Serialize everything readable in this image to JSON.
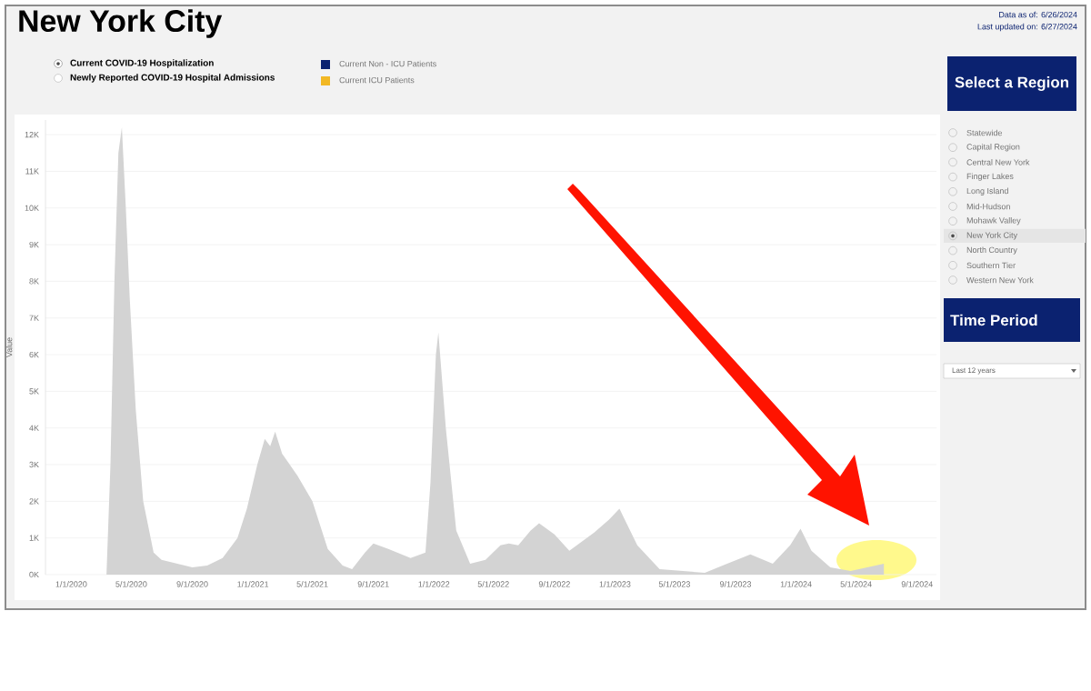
{
  "chart_data": {
    "type": "area",
    "title": "New York City",
    "ylabel": "Value",
    "x": [
      "2020-03-12",
      "2020-03-20",
      "2020-03-28",
      "2020-04-05",
      "2020-04-12",
      "2020-04-20",
      "2020-04-28",
      "2020-05-10",
      "2020-05-25",
      "2020-06-15",
      "2020-07-01",
      "2020-08-01",
      "2020-09-01",
      "2020-10-01",
      "2020-11-01",
      "2020-12-01",
      "2020-12-20",
      "2021-01-10",
      "2021-01-25",
      "2021-02-05",
      "2021-02-15",
      "2021-03-01",
      "2021-04-01",
      "2021-05-01",
      "2021-06-01",
      "2021-07-01",
      "2021-07-20",
      "2021-08-15",
      "2021-09-01",
      "2021-10-01",
      "2021-11-15",
      "2021-12-15",
      "2021-12-25",
      "2022-01-05",
      "2022-01-10",
      "2022-01-25",
      "2022-02-15",
      "2022-03-15",
      "2022-04-15",
      "2022-05-15",
      "2022-06-01",
      "2022-06-20",
      "2022-07-15",
      "2022-08-01",
      "2022-09-01",
      "2022-10-01",
      "2022-11-20",
      "2022-12-20",
      "2023-01-10",
      "2023-02-15",
      "2023-04-01",
      "2023-07-01",
      "2023-08-15",
      "2023-10-01",
      "2023-11-15",
      "2023-12-20",
      "2024-01-10",
      "2024-02-01",
      "2024-03-10",
      "2024-04-20",
      "2024-06-26"
    ],
    "series": [
      {
        "color": "#d3d3d3",
        "values": [
          0,
          3000,
          8000,
          11500,
          12200,
          10000,
          7500,
          4500,
          2000,
          600,
          400,
          300,
          200,
          250,
          450,
          1000,
          1800,
          3000,
          3700,
          3500,
          3900,
          3300,
          2700,
          2000,
          700,
          250,
          150,
          600,
          850,
          700,
          450,
          600,
          2500,
          6000,
          6600,
          4000,
          1200,
          300,
          400,
          800,
          850,
          800,
          1200,
          1400,
          1100,
          650,
          1150,
          1500,
          1800,
          800,
          150,
          50,
          300,
          550,
          300,
          800,
          1250,
          650,
          200,
          100,
          300
        ]
      }
    ],
    "xlim": [
      "2019-11-10",
      "2024-10-10"
    ],
    "xticks": [
      {
        "value": "2020-01-01",
        "label": "1/1/2020"
      },
      {
        "value": "2020-05-01",
        "label": "5/1/2020"
      },
      {
        "value": "2020-09-01",
        "label": "9/1/2020"
      },
      {
        "value": "2021-01-01",
        "label": "1/1/2021"
      },
      {
        "value": "2021-05-01",
        "label": "5/1/2021"
      },
      {
        "value": "2021-09-01",
        "label": "9/1/2021"
      },
      {
        "value": "2022-01-01",
        "label": "1/1/2022"
      },
      {
        "value": "2022-05-01",
        "label": "5/1/2022"
      },
      {
        "value": "2022-09-01",
        "label": "9/1/2022"
      },
      {
        "value": "2023-01-01",
        "label": "1/1/2023"
      },
      {
        "value": "2023-05-01",
        "label": "5/1/2023"
      },
      {
        "value": "2023-09-01",
        "label": "9/1/2023"
      },
      {
        "value": "2024-01-01",
        "label": "1/1/2024"
      },
      {
        "value": "2024-05-01",
        "label": "5/1/2024"
      },
      {
        "value": "2024-09-01",
        "label": "9/1/2024"
      }
    ],
    "ylim": [
      0,
      12400
    ],
    "yticks": [
      {
        "value": 0,
        "label": "0K"
      },
      {
        "value": 1000,
        "label": "1K"
      },
      {
        "value": 2000,
        "label": "2K"
      },
      {
        "value": 3000,
        "label": "3K"
      },
      {
        "value": 4000,
        "label": "4K"
      },
      {
        "value": 5000,
        "label": "5K"
      },
      {
        "value": 6000,
        "label": "6K"
      },
      {
        "value": 7000,
        "label": "7K"
      },
      {
        "value": 8000,
        "label": "8K"
      },
      {
        "value": 9000,
        "label": "9K"
      },
      {
        "value": 10000,
        "label": "10K"
      },
      {
        "value": 11000,
        "label": "11K"
      },
      {
        "value": 12000,
        "label": "12K"
      }
    ],
    "grid": "y",
    "marker": "none",
    "annotations": [
      "Data as of: 6/26/2024",
      "Last updated on: 6/27/2024",
      "Current COVID-19 Hospitalization",
      "Newly Reported COVID-19 Hospital Admissions",
      "Current Non - ICU Patients",
      "Current ICU Patients",
      "Select a Region",
      "Statewide",
      "Capital Region",
      "Central New York",
      "Finger Lakes",
      "Long Island",
      "Mid-Hudson",
      "Mohawk Valley",
      "New York City",
      "North Country",
      "Southern Tier",
      "Western New York",
      "Time Period",
      "Last 12 years"
    ]
  }
}
